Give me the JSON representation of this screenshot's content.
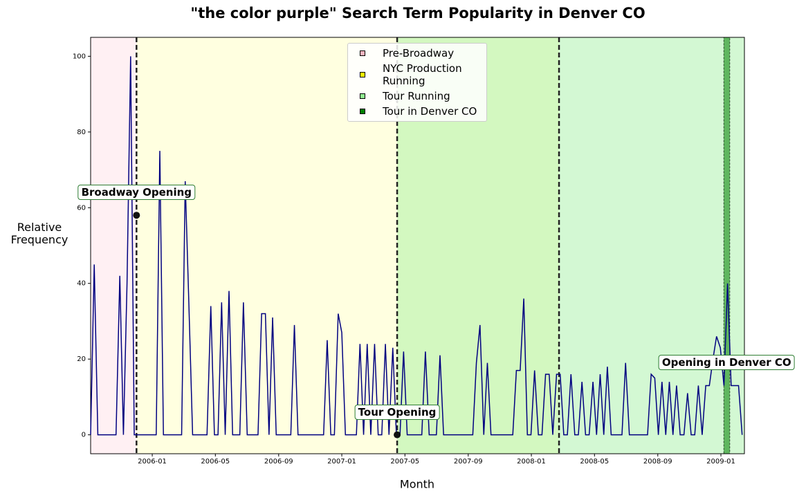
{
  "chart_data": {
    "type": "line",
    "title": "\"the color purple\" Search Term Popularity in Denver CO",
    "xlabel": "Month",
    "ylabel": "Relative Frequency",
    "color": "#000080",
    "x": [
      2005.675,
      2005.694,
      2005.713,
      2005.733,
      2005.752,
      2005.771,
      2005.79,
      2005.809,
      2005.829,
      2005.848,
      2005.867,
      2005.886,
      2005.905,
      2005.925,
      2005.944,
      2005.963,
      2005.982,
      2006.001,
      2006.021,
      2006.04,
      2006.059,
      2006.078,
      2006.097,
      2006.117,
      2006.136,
      2006.155,
      2006.174,
      2006.193,
      2006.213,
      2006.232,
      2006.251,
      2006.27,
      2006.289,
      2006.309,
      2006.328,
      2006.347,
      2006.366,
      2006.385,
      2006.405,
      2006.424,
      2006.443,
      2006.462,
      2006.481,
      2006.501,
      2006.52,
      2006.539,
      2006.558,
      2006.577,
      2006.597,
      2006.616,
      2006.635,
      2006.654,
      2006.673,
      2006.693,
      2006.712,
      2006.731,
      2006.75,
      2006.769,
      2006.789,
      2006.808,
      2006.827,
      2006.846,
      2006.865,
      2006.885,
      2006.904,
      2006.923,
      2006.942,
      2006.961,
      2006.981,
      2007.0,
      2007.019,
      2007.038,
      2007.057,
      2007.077,
      2007.096,
      2007.115,
      2007.134,
      2007.153,
      2007.173,
      2007.192,
      2007.211,
      2007.23,
      2007.249,
      2007.269,
      2007.288,
      2007.307,
      2007.326,
      2007.345,
      2007.365,
      2007.384,
      2007.403,
      2007.422,
      2007.441,
      2007.461,
      2007.48,
      2007.499,
      2007.518,
      2007.537,
      2007.557,
      2007.576,
      2007.595,
      2007.614,
      2007.633,
      2007.653,
      2007.672,
      2007.691,
      2007.71,
      2007.729,
      2007.749,
      2007.768,
      2007.787,
      2007.806,
      2007.825,
      2007.845,
      2007.864,
      2007.883,
      2007.902,
      2007.921,
      2007.941,
      2007.96,
      2007.979,
      2007.998,
      2008.017,
      2008.037,
      2008.056,
      2008.075,
      2008.094,
      2008.113,
      2008.133,
      2008.152,
      2008.171,
      2008.19,
      2008.209,
      2008.229,
      2008.248,
      2008.267,
      2008.286,
      2008.305,
      2008.325,
      2008.344,
      2008.363,
      2008.382,
      2008.401,
      2008.421,
      2008.44,
      2008.459,
      2008.478,
      2008.497,
      2008.517,
      2008.536,
      2008.555,
      2008.574,
      2008.593,
      2008.613,
      2008.632,
      2008.651,
      2008.67,
      2008.689,
      2008.709,
      2008.728,
      2008.747,
      2008.766,
      2008.785,
      2008.805,
      2008.824,
      2008.843,
      2008.862,
      2008.881,
      2008.901,
      2008.92,
      2008.939,
      2008.958,
      2008.977,
      2008.997,
      2009.016,
      2009.035,
      2009.054,
      2009.073,
      2009.093,
      2009.112
    ],
    "values": [
      0,
      45,
      0,
      0,
      0,
      0,
      0,
      0,
      42,
      0,
      40,
      100,
      0,
      0,
      0,
      0,
      0,
      0,
      0,
      75,
      0,
      0,
      0,
      0,
      0,
      0,
      67,
      35,
      0,
      0,
      0,
      0,
      0,
      34,
      0,
      0,
      35,
      0,
      38,
      0,
      0,
      0,
      35,
      0,
      0,
      0,
      0,
      32,
      32,
      0,
      31,
      0,
      0,
      0,
      0,
      0,
      29,
      0,
      0,
      0,
      0,
      0,
      0,
      0,
      0,
      25,
      0,
      0,
      32,
      27,
      0,
      0,
      0,
      0,
      24,
      0,
      24,
      0,
      24,
      0,
      0,
      24,
      0,
      23,
      0,
      0,
      22,
      0,
      0,
      0,
      0,
      0,
      22,
      0,
      0,
      0,
      21,
      0,
      0,
      0,
      0,
      0,
      0,
      0,
      0,
      0,
      19,
      29,
      0,
      19,
      0,
      0,
      0,
      0,
      0,
      0,
      0,
      17,
      17,
      36,
      0,
      0,
      17,
      0,
      0,
      16,
      16,
      0,
      16,
      16,
      0,
      0,
      16,
      0,
      0,
      14,
      0,
      0,
      14,
      0,
      16,
      0,
      18,
      0,
      0,
      0,
      0,
      19,
      0,
      0,
      0,
      0,
      0,
      0,
      16,
      15,
      0,
      14,
      0,
      14,
      0,
      13,
      0,
      0,
      11,
      0,
      0,
      13,
      0,
      13,
      13,
      20,
      26,
      23,
      13,
      40,
      13,
      13,
      13,
      0
    ],
    "xlim": [
      2005.675,
      2009.124
    ],
    "ylim": [
      -5,
      105
    ],
    "xticks": [
      {
        "value": 2006.0,
        "label": "2006-01"
      },
      {
        "value": 2006.333,
        "label": "2006-05"
      },
      {
        "value": 2006.667,
        "label": "2006-09"
      },
      {
        "value": 2007.0,
        "label": "2007-01"
      },
      {
        "value": 2007.333,
        "label": "2007-05"
      },
      {
        "value": 2007.667,
        "label": "2007-09"
      },
      {
        "value": 2008.0,
        "label": "2008-01"
      },
      {
        "value": 2008.333,
        "label": "2008-05"
      },
      {
        "value": 2008.667,
        "label": "2008-09"
      },
      {
        "value": 2009.0,
        "label": "2009-01"
      }
    ],
    "yticks": [
      0,
      20,
      40,
      60,
      80,
      100
    ],
    "regions": [
      {
        "name": "Pre-Broadway",
        "color": "#ffb6c1",
        "opacity": 0.2,
        "start": 2005.675,
        "end": 2005.917
      },
      {
        "name": "NYC Production Running",
        "color": "#ffff00",
        "opacity": 0.12,
        "start": 2005.917,
        "end": 2008.146
      },
      {
        "name": "Tour Running",
        "color": "#90ee90",
        "opacity": 0.4,
        "start": 2007.292,
        "end": 2009.124
      },
      {
        "name": "Tour in Denver CO",
        "color": "#008000",
        "opacity": 0.55,
        "start": 2009.015,
        "end": 2009.047
      }
    ],
    "event_lines": [
      2005.917,
      2007.292,
      2008.146
    ],
    "annotations": [
      {
        "text": "Broadway Opening",
        "x": 2005.917,
        "y": 58,
        "show_marker": true
      },
      {
        "text": "Tour Opening",
        "x": 2007.292,
        "y": 0,
        "show_marker": true
      },
      {
        "text": "Opening in Denver CO",
        "x": 2009.03,
        "y": 13,
        "show_marker": false
      }
    ]
  }
}
